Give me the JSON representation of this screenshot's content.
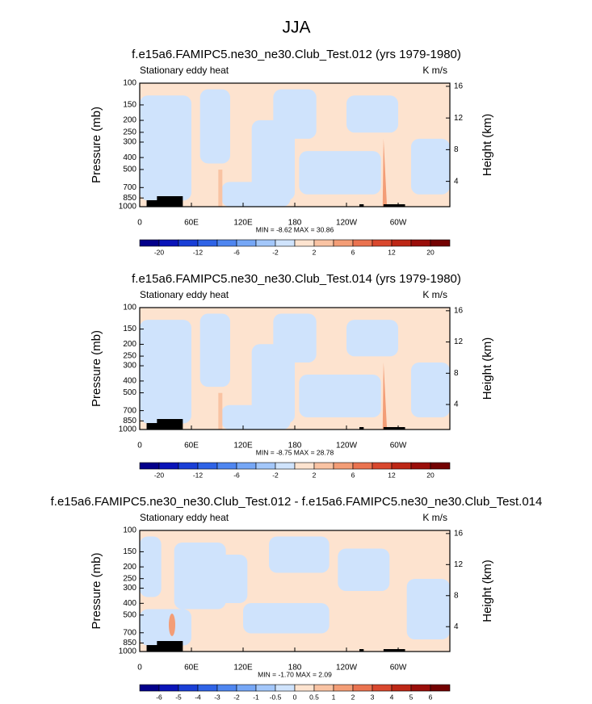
{
  "title": "JJA",
  "chart_data": [
    {
      "type": "contour",
      "title": "f.e15a6.FAMIPC5.ne30_ne30.Club_Test.012 (yrs 1979-1980)",
      "subtitle_left": "Stationary eddy heat",
      "subtitle_right": "K m/s",
      "ylabel": "Pressure (mb)",
      "y2label": "Height (km)",
      "ylim": [
        1000,
        100
      ],
      "yscale": "log",
      "yticks": [
        100,
        150,
        200,
        250,
        300,
        400,
        500,
        700,
        850,
        1000
      ],
      "y2lim": [
        0.8,
        16.4
      ],
      "y2ticks": [
        4,
        8,
        12,
        16
      ],
      "xlim": [
        0,
        360
      ],
      "xticks": [
        0,
        {
          "value": 60,
          "label": "60E"
        },
        {
          "value": 120,
          "label": "120E"
        },
        180,
        {
          "value": 240,
          "label": "120W"
        },
        {
          "value": 300,
          "label": "60W"
        }
      ],
      "stats": "MIN = -8.62  MAX = 30.86",
      "colorbar": {
        "ticks": [
          -20,
          -12,
          -6,
          -2,
          2,
          6,
          12,
          20
        ],
        "colors": [
          "#03008a",
          "#0a14b8",
          "#1a3fd6",
          "#2f63e6",
          "#4f86f0",
          "#76a7f6",
          "#a3c7fa",
          "#cfe3fc",
          "#fde3cf",
          "#f9c3a3",
          "#f39d76",
          "#ea7350",
          "#d9482e",
          "#bd2716",
          "#9a0e0a",
          "#730202"
        ]
      }
    },
    {
      "type": "contour",
      "title": "f.e15a6.FAMIPC5.ne30_ne30.Club_Test.014 (yrs 1979-1980)",
      "subtitle_left": "Stationary eddy heat",
      "subtitle_right": "K m/s",
      "ylabel": "Pressure (mb)",
      "y2label": "Height (km)",
      "ylim": [
        1000,
        100
      ],
      "yscale": "log",
      "yticks": [
        100,
        150,
        200,
        250,
        300,
        400,
        500,
        700,
        850,
        1000
      ],
      "y2lim": [
        0.8,
        16.4
      ],
      "y2ticks": [
        4,
        8,
        12,
        16
      ],
      "xlim": [
        0,
        360
      ],
      "xticks": [
        0,
        {
          "value": 60,
          "label": "60E"
        },
        {
          "value": 120,
          "label": "120E"
        },
        180,
        {
          "value": 240,
          "label": "120W"
        },
        {
          "value": 300,
          "label": "60W"
        }
      ],
      "stats": "MIN = -8.75  MAX = 28.78",
      "colorbar": {
        "ticks": [
          -20,
          -12,
          -6,
          -2,
          2,
          6,
          12,
          20
        ],
        "colors": [
          "#03008a",
          "#0a14b8",
          "#1a3fd6",
          "#2f63e6",
          "#4f86f0",
          "#76a7f6",
          "#a3c7fa",
          "#cfe3fc",
          "#fde3cf",
          "#f9c3a3",
          "#f39d76",
          "#ea7350",
          "#d9482e",
          "#bd2716",
          "#9a0e0a",
          "#730202"
        ]
      }
    },
    {
      "type": "contour",
      "title": "f.e15a6.FAMIPC5.ne30_ne30.Club_Test.012 - f.e15a6.FAMIPC5.ne30_ne30.Club_Test.014",
      "subtitle_left": "Stationary eddy heat",
      "subtitle_right": "K m/s",
      "ylabel": "Pressure (mb)",
      "y2label": "Height (km)",
      "ylim": [
        1000,
        100
      ],
      "yscale": "log",
      "yticks": [
        100,
        150,
        200,
        250,
        300,
        400,
        500,
        700,
        850,
        1000
      ],
      "y2lim": [
        0.8,
        16.4
      ],
      "y2ticks": [
        4,
        8,
        12,
        16
      ],
      "xlim": [
        0,
        360
      ],
      "xticks": [
        0,
        {
          "value": 60,
          "label": "60E"
        },
        {
          "value": 120,
          "label": "120E"
        },
        180,
        {
          "value": 240,
          "label": "120W"
        },
        {
          "value": 300,
          "label": "60W"
        }
      ],
      "stats": "MIN = -1.70  MAX =  2.09",
      "colorbar": {
        "ticks": [
          -6,
          -5,
          -4,
          -3,
          -2,
          -1,
          -0.5,
          0,
          0.5,
          1,
          2,
          3,
          4,
          5,
          6
        ],
        "colors": [
          "#03008a",
          "#0a14b8",
          "#1a3fd6",
          "#2f63e6",
          "#4f86f0",
          "#76a7f6",
          "#a3c7fa",
          "#cfe3fc",
          "#fde3cf",
          "#f9c3a3",
          "#f39d76",
          "#ea7350",
          "#d9482e",
          "#bd2716",
          "#9a0e0a",
          "#730202"
        ]
      }
    }
  ]
}
